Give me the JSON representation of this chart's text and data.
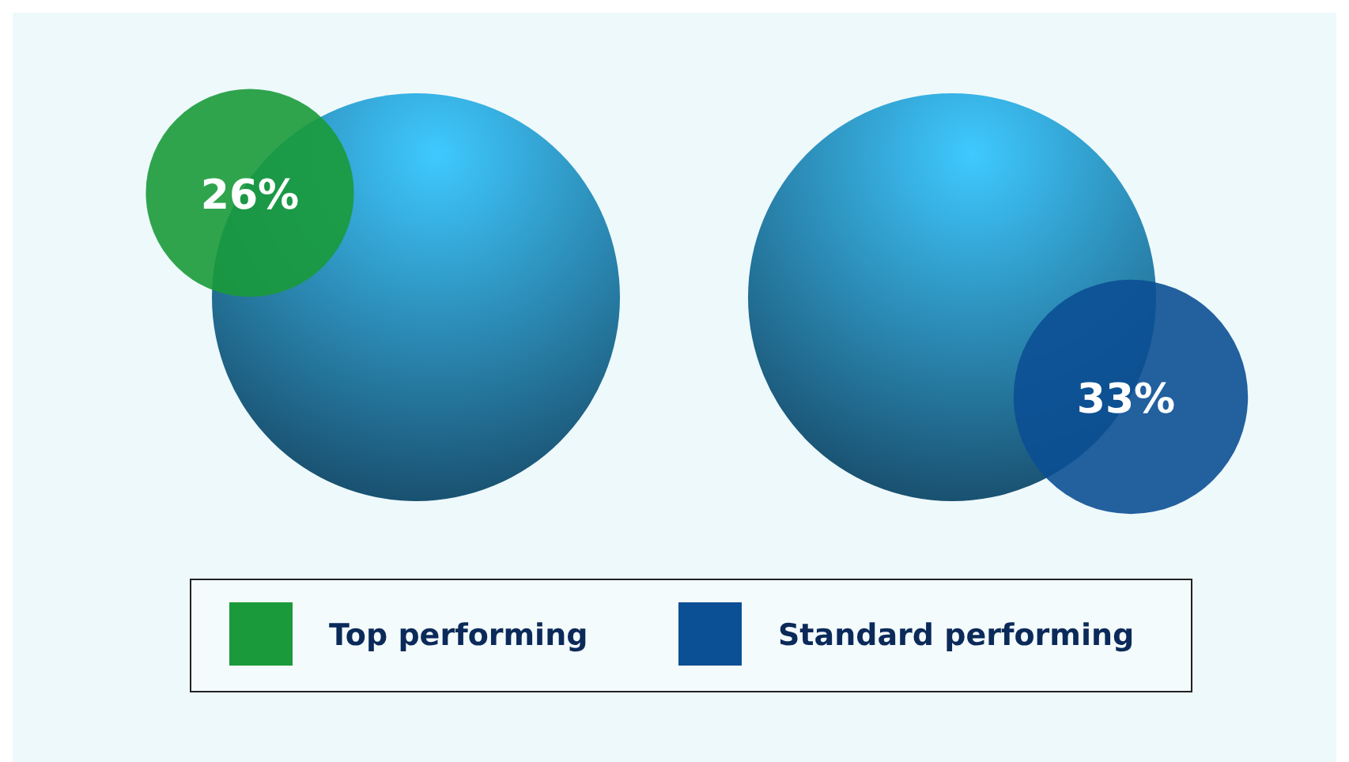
{
  "chart_data": {
    "type": "other",
    "categories": [
      "Top performing",
      "Standard performing"
    ],
    "values": [
      26,
      33
    ],
    "value_labels": [
      "26%",
      "33%"
    ],
    "colors": [
      "#1a9a3a",
      "#0b4f94"
    ]
  }
}
